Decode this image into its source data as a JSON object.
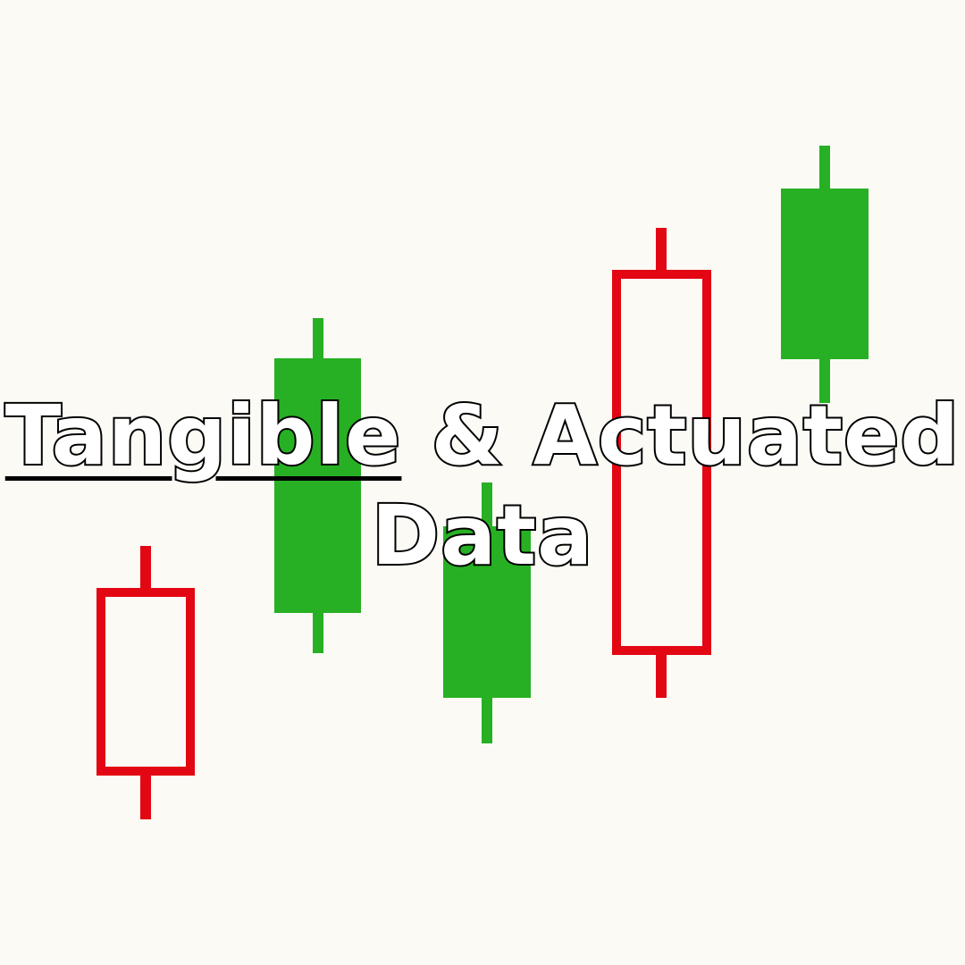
{
  "colors": {
    "background": "#fbfaf5",
    "bullish": "#27b024",
    "bearish": "#e30613",
    "text_fill": "#ffffff",
    "text_stroke": "#000000"
  },
  "headline": {
    "part1_underlined": "Tangible",
    "part1_rest": " & Actuated",
    "line2": "Data"
  },
  "candlesticks": [
    {
      "direction": "bearish",
      "style": "hollow"
    },
    {
      "direction": "bullish",
      "style": "filled"
    },
    {
      "direction": "bullish",
      "style": "filled"
    },
    {
      "direction": "bearish",
      "style": "hollow"
    },
    {
      "direction": "bullish",
      "style": "filled"
    }
  ]
}
